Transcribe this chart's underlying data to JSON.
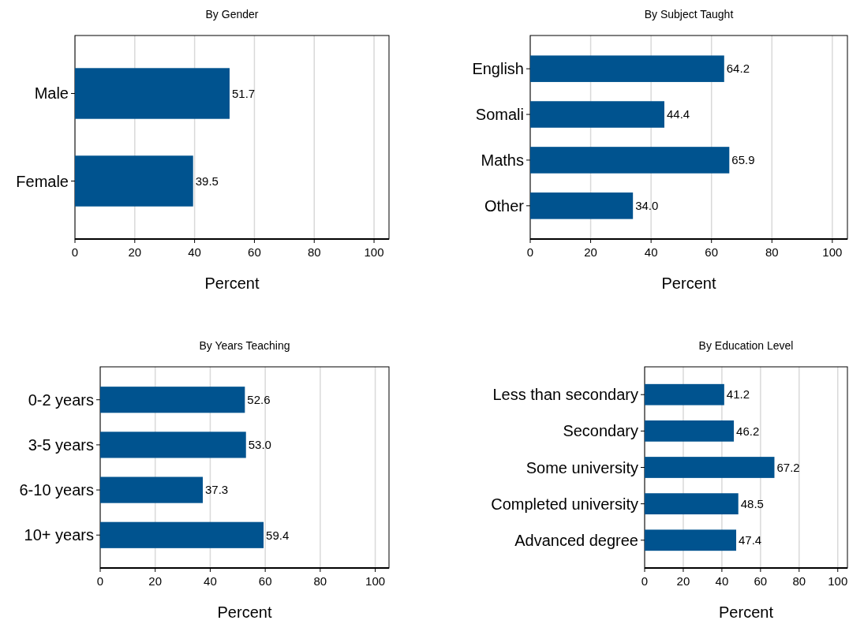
{
  "chart_data": [
    {
      "type": "bar",
      "orientation": "horizontal",
      "title": "By Gender",
      "xlabel": "Percent",
      "categories": [
        "Male",
        "Female"
      ],
      "values": [
        51.7,
        39.5
      ],
      "value_labels": [
        "51.7",
        "39.5"
      ],
      "color": "#00538f",
      "xlim": [
        0,
        105
      ],
      "xticks": [
        0,
        20,
        40,
        60,
        80,
        100
      ],
      "grid": "x"
    },
    {
      "type": "bar",
      "orientation": "horizontal",
      "title": "By Subject Taught",
      "xlabel": "Percent",
      "categories": [
        "English",
        "Somali",
        "Maths",
        "Other"
      ],
      "values": [
        64.2,
        44.4,
        65.9,
        34.0
      ],
      "value_labels": [
        "64.2",
        "44.4",
        "65.9",
        "34.0"
      ],
      "color": "#00538f",
      "xlim": [
        0,
        105
      ],
      "xticks": [
        0,
        20,
        40,
        60,
        80,
        100
      ],
      "grid": "x"
    },
    {
      "type": "bar",
      "orientation": "horizontal",
      "title": "By Years Teaching",
      "xlabel": "Percent",
      "categories": [
        "0-2 years",
        "3-5 years",
        "6-10 years",
        "10+ years"
      ],
      "values": [
        52.6,
        53.0,
        37.3,
        59.4
      ],
      "value_labels": [
        "52.6",
        "53.0",
        "37.3",
        "59.4"
      ],
      "color": "#00538f",
      "xlim": [
        0,
        105
      ],
      "xticks": [
        0,
        20,
        40,
        60,
        80,
        100
      ],
      "grid": "x"
    },
    {
      "type": "bar",
      "orientation": "horizontal",
      "title": "By Education Level",
      "xlabel": "Percent",
      "categories": [
        "Less than secondary",
        "Secondary",
        "Some university",
        "Completed university",
        "Advanced degree"
      ],
      "values": [
        41.2,
        46.2,
        67.2,
        48.5,
        47.4
      ],
      "value_labels": [
        "41.2",
        "46.2",
        "67.2",
        "48.5",
        "47.4"
      ],
      "color": "#00538f",
      "xlim": [
        0,
        105
      ],
      "xticks": [
        0,
        20,
        40,
        60,
        80,
        100
      ],
      "grid": "x"
    }
  ]
}
